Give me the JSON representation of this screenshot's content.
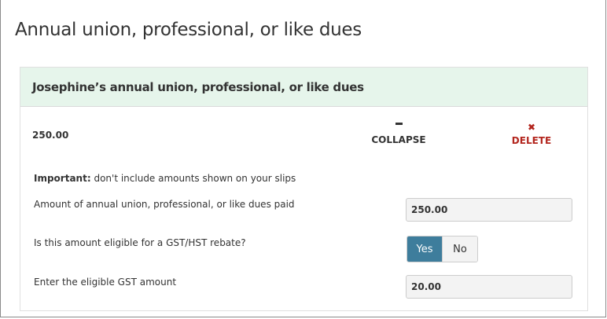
{
  "page": {
    "title": "Annual union, professional, or like dues"
  },
  "card": {
    "title": "Josephine’s annual union, professional, or like dues",
    "summary_amount": "250.00",
    "collapse_label": "COLLAPSE",
    "delete_label": "DELETE",
    "important_strong": "Important:",
    "important_text": " don't include amounts shown on your slips",
    "dues_label": "Amount of annual union, professional, or like dues paid",
    "dues_value": "250.00",
    "rebate_label": "Is this amount eligible for a GST/HST rebate?",
    "yes_label": "Yes",
    "no_label": "No",
    "rebate_selected": "Yes",
    "gst_label": "Enter the eligible GST amount",
    "gst_value": "20.00"
  },
  "colors": {
    "header_bg": "#e6f5eb",
    "accent": "#3e7d9c",
    "delete": "#b3261e"
  }
}
